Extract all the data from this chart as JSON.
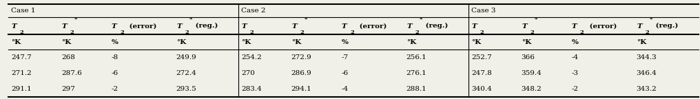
{
  "case1_label": "Case 1",
  "case2_label": "Case 2",
  "case3_label": "Case 3",
  "col_headers_math": [
    "$\\mathbf{T_2}$",
    "$\\mathbf{T_2^*}$",
    "$\\mathbf{T_2}$ (error)",
    "$\\mathbf{T_2^*}$ (reg.)",
    "$\\mathbf{T_2}$",
    "$\\mathbf{T_2^*}$",
    "$\\mathbf{T_2}$ (error)",
    "$\\mathbf{T_2^*}$ (reg.)",
    "$\\mathbf{T_2}$",
    "$\\mathbf{T_2^*}$",
    "$\\mathbf{T_2}$ (error)",
    "$\\mathbf{T_2^*}$ (reg.)"
  ],
  "units": [
    "°K",
    "°K",
    "%",
    "°K",
    "°K",
    "°K",
    "%",
    "°K",
    "°K",
    "°K",
    "%",
    "°K"
  ],
  "rows": [
    [
      "247.7",
      "268",
      "-8",
      "249.9",
      "254.2",
      "272.9",
      "-7",
      "256.1",
      "252.7",
      "366",
      "-4",
      "344.3"
    ],
    [
      "271.2",
      "287.6",
      "-6",
      "272.4",
      "270",
      "286.9",
      "-6",
      "276.1",
      "247.8",
      "359.4",
      "-3",
      "346.4"
    ],
    [
      "291.1",
      "297",
      "-2",
      "293.5",
      "283.4",
      "294.1",
      "-4",
      "288.1",
      "340.4",
      "348.2",
      "-2",
      "343.2"
    ]
  ],
  "col_widths_rel": [
    1.0,
    1.0,
    1.3,
    1.3,
    1.0,
    1.0,
    1.3,
    1.3,
    1.0,
    1.0,
    1.3,
    1.3
  ],
  "bg_color": "#f0f0e8",
  "border_color": "#000000",
  "text_color": "#000000",
  "font_size": 7.5
}
